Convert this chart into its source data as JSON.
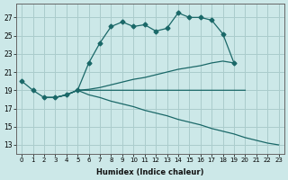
{
  "xlabel": "Humidex (Indice chaleur)",
  "background_color": "#cce8e8",
  "grid_color": "#aacccc",
  "line_color": "#1a6868",
  "xlim": [
    -0.5,
    23.5
  ],
  "ylim": [
    12,
    28.5
  ],
  "xticks": [
    0,
    1,
    2,
    3,
    4,
    5,
    6,
    7,
    8,
    9,
    10,
    11,
    12,
    13,
    14,
    15,
    16,
    17,
    18,
    19,
    20,
    21,
    22,
    23
  ],
  "yticks": [
    13,
    15,
    17,
    19,
    21,
    23,
    25,
    27
  ],
  "series": [
    {
      "x": [
        0,
        1,
        2,
        3,
        4,
        5,
        6,
        7,
        8,
        9,
        10,
        11,
        12,
        13,
        14,
        15,
        16,
        17,
        18,
        19,
        20,
        21,
        22,
        23
      ],
      "y": [
        20.0,
        19.0,
        18.2,
        18.2,
        18.5,
        19.0,
        22.0,
        24.2,
        26.0,
        26.5,
        26.0,
        26.2,
        25.5,
        25.8,
        27.5,
        27.0,
        27.0,
        26.7,
        25.2,
        22.0,
        null,
        null,
        null,
        null
      ],
      "markers": true
    },
    {
      "x": [
        2,
        3,
        4,
        5,
        6,
        7,
        8,
        9,
        10,
        11,
        12,
        13,
        14,
        15,
        16,
        17,
        18,
        19,
        20,
        21,
        22,
        23
      ],
      "y": [
        18.2,
        18.2,
        18.5,
        19.0,
        19.1,
        19.3,
        19.6,
        19.9,
        20.2,
        20.4,
        20.7,
        21.0,
        21.3,
        21.5,
        21.7,
        22.0,
        22.2,
        22.0,
        null,
        null,
        null,
        null
      ],
      "markers": false
    },
    {
      "x": [
        2,
        3,
        4,
        5,
        6,
        7,
        8,
        9,
        10,
        11,
        12,
        13,
        14,
        15,
        16,
        17,
        18,
        19,
        20
      ],
      "y": [
        18.2,
        18.2,
        18.5,
        19.0,
        19.0,
        19.0,
        19.0,
        19.0,
        19.0,
        19.0,
        19.0,
        19.0,
        19.0,
        19.0,
        19.0,
        19.0,
        19.0,
        19.0,
        19.0
      ],
      "markers": false
    },
    {
      "x": [
        2,
        3,
        4,
        5,
        6,
        7,
        8,
        9,
        10,
        11,
        12,
        13,
        14,
        15,
        16,
        17,
        18,
        19,
        20,
        21,
        22,
        23
      ],
      "y": [
        18.2,
        18.2,
        18.5,
        19.0,
        18.5,
        18.2,
        17.8,
        17.5,
        17.2,
        16.8,
        16.5,
        16.2,
        15.8,
        15.5,
        15.2,
        14.8,
        14.5,
        14.2,
        13.8,
        13.5,
        13.2,
        13.0
      ],
      "markers": false
    }
  ]
}
